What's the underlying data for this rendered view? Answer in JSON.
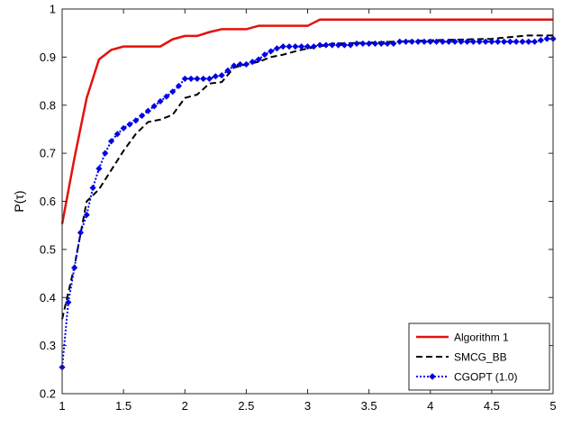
{
  "chart_data": {
    "type": "line",
    "title": "",
    "xlabel": "",
    "ylabel": "P(τ)",
    "xlim": [
      1,
      5
    ],
    "ylim": [
      0.2,
      1
    ],
    "xticks": [
      "1",
      "1.5",
      "2",
      "2.5",
      "3",
      "3.5",
      "4",
      "4.5",
      "5"
    ],
    "yticks": [
      "0.2",
      "0.3",
      "0.4",
      "0.5",
      "0.6",
      "0.7",
      "0.8",
      "0.9",
      "1"
    ],
    "grid": false,
    "legend_position": "bottom-right",
    "series": [
      {
        "name": "Algorithm 1",
        "color": "#e3120b",
        "style": "solid",
        "marker": "none",
        "x": [
          1,
          1.1,
          1.2,
          1.3,
          1.4,
          1.5,
          1.6,
          1.7,
          1.8,
          1.9,
          2.0,
          2.1,
          2.2,
          2.3,
          2.4,
          2.5,
          2.6,
          2.7,
          2.8,
          2.9,
          3.0,
          3.1,
          3.5,
          4.0,
          4.5,
          5.0
        ],
        "y": [
          0.553,
          0.69,
          0.815,
          0.895,
          0.915,
          0.922,
          0.922,
          0.922,
          0.922,
          0.937,
          0.944,
          0.944,
          0.952,
          0.958,
          0.958,
          0.958,
          0.965,
          0.965,
          0.965,
          0.965,
          0.965,
          0.978,
          0.978,
          0.978,
          0.978,
          0.978
        ]
      },
      {
        "name": "SMCG_BB",
        "color": "#000000",
        "style": "dashed",
        "marker": "none",
        "x": [
          1,
          1.1,
          1.2,
          1.3,
          1.4,
          1.5,
          1.6,
          1.7,
          1.8,
          1.9,
          2.0,
          2.1,
          2.2,
          2.3,
          2.4,
          2.5,
          2.6,
          2.7,
          2.8,
          2.9,
          3.0,
          3.1,
          3.2,
          3.5,
          4.0,
          4.5,
          4.8,
          5.0
        ],
        "y": [
          0.355,
          0.465,
          0.6,
          0.625,
          0.665,
          0.705,
          0.74,
          0.765,
          0.77,
          0.78,
          0.815,
          0.822,
          0.845,
          0.848,
          0.878,
          0.885,
          0.89,
          0.9,
          0.905,
          0.912,
          0.918,
          0.922,
          0.928,
          0.93,
          0.935,
          0.938,
          0.945,
          0.945
        ]
      },
      {
        "name": "CGOPT (1.0)",
        "color": "#0000e6",
        "style": "dotted",
        "marker": "diamond",
        "x": [
          1,
          1.05,
          1.1,
          1.15,
          1.2,
          1.25,
          1.3,
          1.35,
          1.4,
          1.45,
          1.5,
          1.55,
          1.6,
          1.65,
          1.7,
          1.75,
          1.8,
          1.85,
          1.9,
          1.95,
          2.0,
          2.05,
          2.1,
          2.15,
          2.2,
          2.25,
          2.3,
          2.35,
          2.4,
          2.45,
          2.5,
          2.55,
          2.6,
          2.65,
          2.7,
          2.75,
          2.8,
          2.85,
          2.9,
          2.95,
          3.0,
          3.05,
          3.1,
          3.15,
          3.2,
          3.25,
          3.3,
          3.35,
          3.4,
          3.45,
          3.5,
          3.55,
          3.6,
          3.65,
          3.7,
          3.75,
          3.8,
          3.85,
          3.9,
          3.95,
          4.0,
          4.05,
          4.1,
          4.15,
          4.2,
          4.25,
          4.3,
          4.35,
          4.4,
          4.45,
          4.5,
          4.55,
          4.6,
          4.65,
          4.7,
          4.75,
          4.8,
          4.85,
          4.9,
          4.95,
          5.0
        ],
        "y": [
          0.255,
          0.39,
          0.462,
          0.535,
          0.572,
          0.628,
          0.668,
          0.7,
          0.725,
          0.74,
          0.752,
          0.76,
          0.768,
          0.778,
          0.788,
          0.798,
          0.808,
          0.818,
          0.828,
          0.84,
          0.855,
          0.855,
          0.855,
          0.855,
          0.855,
          0.86,
          0.862,
          0.872,
          0.882,
          0.885,
          0.885,
          0.89,
          0.895,
          0.905,
          0.912,
          0.918,
          0.922,
          0.922,
          0.922,
          0.922,
          0.922,
          0.922,
          0.925,
          0.925,
          0.925,
          0.925,
          0.925,
          0.925,
          0.928,
          0.928,
          0.928,
          0.928,
          0.928,
          0.928,
          0.928,
          0.932,
          0.932,
          0.932,
          0.932,
          0.932,
          0.932,
          0.932,
          0.932,
          0.932,
          0.932,
          0.932,
          0.932,
          0.932,
          0.932,
          0.932,
          0.932,
          0.932,
          0.932,
          0.932,
          0.932,
          0.932,
          0.932,
          0.932,
          0.935,
          0.938,
          0.938
        ]
      }
    ]
  }
}
